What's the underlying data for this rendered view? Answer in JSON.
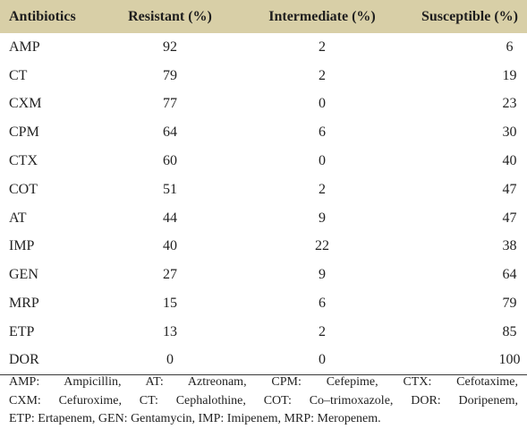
{
  "table": {
    "headers": [
      "Antibiotics",
      "Resistant (%)",
      "Intermediate (%)",
      "Susceptible (%)"
    ],
    "rows": [
      [
        "AMP",
        "92",
        "2",
        "6"
      ],
      [
        "CT",
        "79",
        "2",
        "19"
      ],
      [
        "CXM",
        "77",
        "0",
        "23"
      ],
      [
        "CPM",
        "64",
        "6",
        "30"
      ],
      [
        "CTX",
        "60",
        "0",
        "40"
      ],
      [
        "COT",
        "51",
        "2",
        "47"
      ],
      [
        "AT",
        "44",
        "9",
        "47"
      ],
      [
        "IMP",
        "40",
        "22",
        "38"
      ],
      [
        "GEN",
        "27",
        "9",
        "64"
      ],
      [
        "MRP",
        "15",
        "6",
        "79"
      ],
      [
        "ETP",
        "13",
        "2",
        "85"
      ],
      [
        "DOR",
        "0",
        "0",
        "100"
      ]
    ]
  },
  "footnote": {
    "lines": [
      "AMP: Ampicillin, AT: Aztreonam, CPM: Cefepime, CTX: Cefotaxime,",
      "CXM: Cefuroxime, CT: Cephalothine, COT: Co–trimoxazole, DOR: Doripenem,",
      "ETP: Ertapenem, GEN: Gentamycin, IMP: Imipenem, MRP: Meropenem."
    ]
  },
  "colors": {
    "header_background": "#d8cfa7",
    "text": "#222222",
    "rule": "#3a3a3a"
  }
}
